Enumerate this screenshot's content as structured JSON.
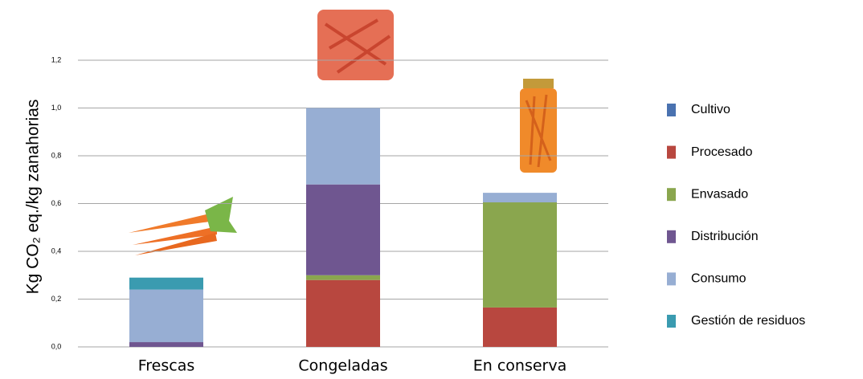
{
  "chart_data": {
    "type": "stacked_bar",
    "y_label": "Kg CO₂ eq./kg zanahorias",
    "categories": [
      "Frescas",
      "Congeladas",
      "En conserva"
    ],
    "series": [
      {
        "name": "Cultivo",
        "color": "#4a72b0",
        "values": [
          0,
          0,
          0
        ]
      },
      {
        "name": "Procesado",
        "color": "#b8473f",
        "values": [
          0,
          0.28,
          0.165
        ]
      },
      {
        "name": "Envasado",
        "color": "#8aa64e",
        "values": [
          0,
          0.02,
          0.44
        ]
      },
      {
        "name": "Distribución",
        "color": "#6f5690",
        "values": [
          0.02,
          0.38,
          0
        ]
      },
      {
        "name": "Consumo",
        "color": "#97aed3",
        "values": [
          0.22,
          0.32,
          0.04
        ]
      },
      {
        "name": "Gestión de residuos",
        "color": "#3a9bb0",
        "values": [
          0.05,
          0,
          0
        ]
      }
    ],
    "ylim": [
      0,
      1.2
    ],
    "yticks": [
      {
        "value": 0,
        "label": "0,0"
      },
      {
        "value": 0.2,
        "label": "0,2"
      },
      {
        "value": 0.4,
        "label": "0,4"
      },
      {
        "value": 0.6,
        "label": "0,6"
      },
      {
        "value": 0.8,
        "label": "0,8"
      },
      {
        "value": 1.0,
        "label": "1,0"
      },
      {
        "value": 1.2,
        "label": "1,2"
      }
    ],
    "grid": true
  }
}
